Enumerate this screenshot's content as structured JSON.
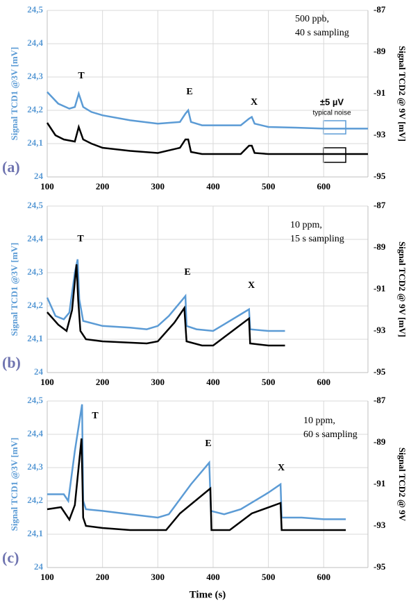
{
  "chart_data": [
    {
      "type": "line",
      "panel_label": "(a)",
      "annotations": [
        "T",
        "E",
        "X",
        "±5 µV",
        "typical noise"
      ],
      "notes": [
        "500 ppb,",
        "40 s sampling"
      ],
      "ylabel": "Signal TCD1 @3V [mV]",
      "y2label": "Signal TCD2 @ 9V [mV]",
      "xlim": [
        100,
        680
      ],
      "xticks": [
        100,
        200,
        300,
        400,
        500,
        600
      ],
      "ylim": [
        24,
        24.5
      ],
      "yticks": [
        24,
        {
          "value": 24.1,
          "label": "24,1"
        },
        {
          "value": 24.2,
          "label": "24,2"
        },
        {
          "value": 24.3,
          "label": "24,3"
        },
        {
          "value": 24.4,
          "label": "24,4"
        },
        {
          "value": 24.5,
          "label": "24,5"
        }
      ],
      "y2lim": [
        -95,
        -87
      ],
      "y2ticks": [
        -95,
        -93,
        -91,
        -89,
        -87
      ],
      "grid": true,
      "series": [
        {
          "color": "#5b9bd5",
          "x": [
            100,
            120,
            140,
            150,
            157,
            165,
            180,
            200,
            250,
            300,
            340,
            350,
            355,
            360,
            380,
            400,
            450,
            465,
            470,
            475,
            500,
            550,
            600,
            640,
            680
          ],
          "values": [
            24.255,
            24.22,
            24.205,
            24.21,
            24.25,
            24.21,
            24.195,
            24.185,
            24.17,
            24.16,
            24.165,
            24.19,
            24.2,
            24.165,
            24.155,
            24.155,
            24.155,
            24.175,
            24.18,
            24.16,
            24.15,
            24.148,
            24.145,
            24.145,
            24.145
          ]
        },
        {
          "color": "#000000",
          "axis": "y2",
          "x": [
            100,
            115,
            130,
            150,
            157,
            165,
            180,
            200,
            250,
            300,
            340,
            350,
            355,
            360,
            380,
            450,
            465,
            470,
            475,
            500,
            600,
            680
          ],
          "values": [
            -92.4,
            -93.0,
            -93.2,
            -93.3,
            -92.6,
            -93.2,
            -93.4,
            -93.6,
            -93.75,
            -93.85,
            -93.6,
            -93.2,
            -93.2,
            -93.8,
            -93.9,
            -93.9,
            -93.5,
            -93.5,
            -93.85,
            -93.9,
            -93.9,
            -93.9
          ]
        }
      ]
    },
    {
      "type": "line",
      "panel_label": "(b)",
      "annotations": [
        "T",
        "E",
        "X"
      ],
      "notes": [
        "10 ppm,",
        "15 s sampling"
      ],
      "ylabel": "Signal TCD1 @3V [mV]",
      "y2label": "Signal TCD2 @ 9V [mV]",
      "xlim": [
        100,
        680
      ],
      "xticks": [
        100,
        200,
        300,
        400,
        500,
        600
      ],
      "ylim": [
        24,
        24.5
      ],
      "yticks": [
        24,
        {
          "value": 24.1,
          "label": "24,1"
        },
        {
          "value": 24.2,
          "label": "24,2"
        },
        {
          "value": 24.3,
          "label": "24,3"
        },
        {
          "value": 24.4,
          "label": "24,4"
        },
        {
          "value": 24.5,
          "label": "24,5"
        }
      ],
      "y2lim": [
        -95,
        -87
      ],
      "y2ticks": [
        -95,
        -93,
        -91,
        -89,
        -87
      ],
      "grid": true,
      "series": [
        {
          "color": "#5b9bd5",
          "x": [
            100,
            115,
            130,
            140,
            150,
            155,
            158,
            165,
            200,
            250,
            280,
            300,
            320,
            345,
            350,
            352,
            370,
            400,
            420,
            450,
            465,
            467,
            500,
            530
          ],
          "values": [
            24.225,
            24.17,
            24.16,
            24.18,
            24.3,
            24.34,
            24.22,
            24.155,
            24.14,
            24.135,
            24.13,
            24.14,
            24.17,
            24.22,
            24.23,
            24.14,
            24.13,
            24.125,
            24.145,
            24.175,
            24.19,
            24.13,
            24.125,
            24.125
          ]
        },
        {
          "color": "#000000",
          "axis": "y2",
          "x": [
            100,
            120,
            135,
            145,
            153,
            156,
            160,
            170,
            200,
            280,
            300,
            330,
            348,
            352,
            380,
            400,
            440,
            465,
            467,
            500,
            530
          ],
          "values": [
            -92.1,
            -92.7,
            -93.0,
            -92.0,
            -89.8,
            -91.5,
            -93.0,
            -93.4,
            -93.5,
            -93.6,
            -93.5,
            -92.6,
            -91.9,
            -93.5,
            -93.7,
            -93.7,
            -92.9,
            -92.4,
            -93.6,
            -93.7,
            -93.7
          ]
        }
      ]
    },
    {
      "type": "line",
      "panel_label": "(c)",
      "annotations": [
        "T",
        "E",
        "X"
      ],
      "notes": [
        "10 ppm,",
        "60 s sampling"
      ],
      "ylabel": "Signal TCD1 @3V [mV]",
      "y2label": "Signal TCD2 @ 9V",
      "xlabel": "Time (s)",
      "xlim": [
        100,
        680
      ],
      "xticks": [
        100,
        200,
        300,
        400,
        500,
        600
      ],
      "ylim": [
        24,
        24.5
      ],
      "yticks": [
        24,
        {
          "value": 24.1,
          "label": "24,1"
        },
        {
          "value": 24.2,
          "label": "24,2"
        },
        {
          "value": 24.3,
          "label": "24,3"
        },
        {
          "value": 24.4,
          "label": "24,4"
        },
        {
          "value": 24.5,
          "label": "24,5"
        }
      ],
      "y2lim": [
        -95,
        -87
      ],
      "y2ticks": [
        -95,
        -93,
        -91,
        -89,
        -87
      ],
      "grid": true,
      "series": [
        {
          "color": "#5b9bd5",
          "x": [
            100,
            130,
            138,
            150,
            163,
            165,
            170,
            200,
            250,
            300,
            320,
            360,
            393,
            396,
            420,
            450,
            500,
            522,
            524,
            560,
            600,
            640
          ],
          "values": [
            24.22,
            24.22,
            24.2,
            24.35,
            24.49,
            24.2,
            24.175,
            24.17,
            24.16,
            24.15,
            24.16,
            24.25,
            24.315,
            24.17,
            24.16,
            24.175,
            24.225,
            24.25,
            24.15,
            24.15,
            24.145,
            24.145
          ]
        },
        {
          "color": "#000000",
          "axis": "y2",
          "x": [
            100,
            125,
            140,
            150,
            162,
            165,
            170,
            200,
            250,
            315,
            340,
            395,
            397,
            430,
            470,
            522,
            524,
            560,
            640
          ],
          "values": [
            -92.2,
            -92.1,
            -92.7,
            -92.0,
            -88.8,
            -92.6,
            -93.0,
            -93.1,
            -93.2,
            -93.2,
            -92.4,
            -91.2,
            -93.2,
            -93.2,
            -92.4,
            -91.9,
            -93.2,
            -93.2,
            -93.2
          ]
        }
      ]
    }
  ]
}
